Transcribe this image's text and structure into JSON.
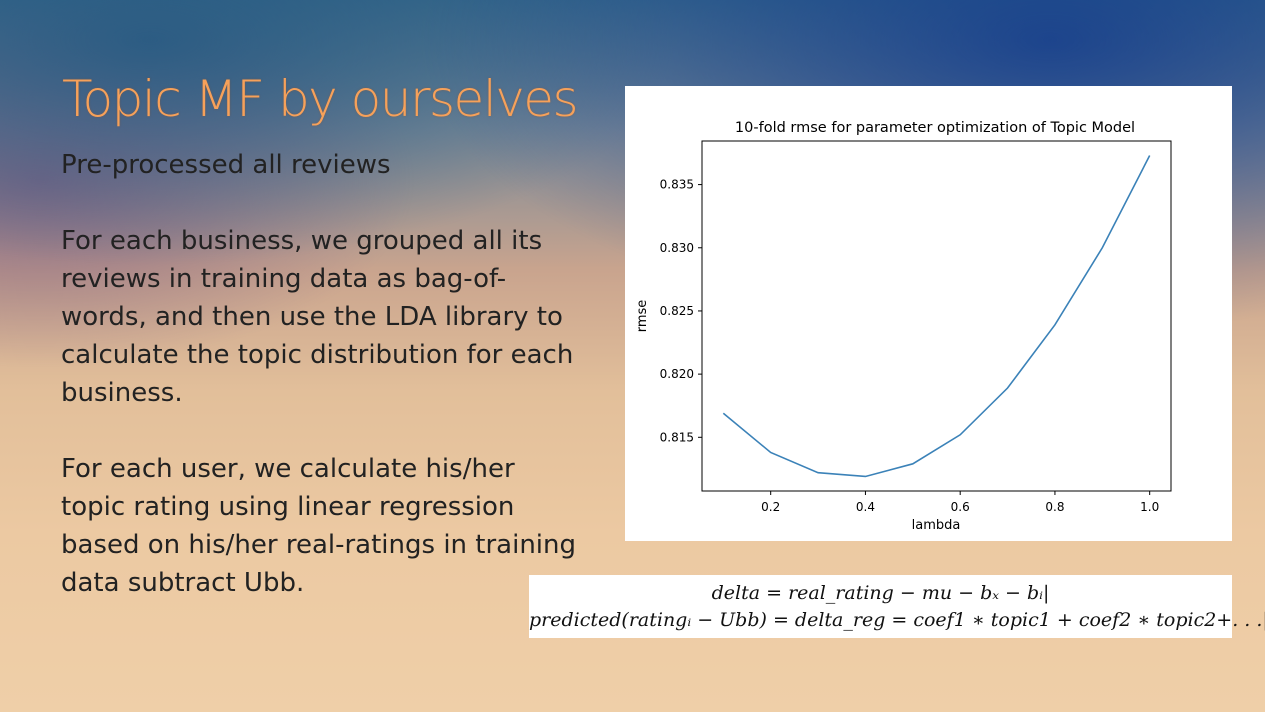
{
  "slide": {
    "title": "Topic MF by ourselves",
    "paragraphs": [
      "Pre-processed all reviews",
      "For each business, we grouped all its reviews in training data as bag-of-words, and then use the LDA library to calculate the topic distribution for each business.",
      "For each user, we calculate his/her topic rating using linear regression based on his/her real-ratings in training data subtract Ubb."
    ],
    "formulas": [
      "delta = real_rating − mu − bₓ − bᵢ|",
      "predicted(ratingᵢ − Ubb) = delta_reg = coef1 ∗ topic1 + coef2 ∗ topic2+. . .|"
    ]
  },
  "chart_data": {
    "type": "line",
    "title": "10-fold rmse for parameter optimization of Topic Model",
    "xlabel": "lambda",
    "ylabel": "rmse",
    "x": [
      0.1,
      0.2,
      0.3,
      0.4,
      0.5,
      0.6,
      0.7,
      0.8,
      0.9,
      1.0
    ],
    "series": [
      {
        "values": [
          0.8169,
          0.8138,
          0.8122,
          0.8119,
          0.8129,
          0.8152,
          0.8189,
          0.8239,
          0.83,
          0.8373
        ]
      }
    ],
    "xticks": [
      "0.2",
      "0.4",
      "0.6",
      "0.8",
      "1.0"
    ],
    "yticks": [
      "0.815",
      "0.820",
      "0.825",
      "0.830",
      "0.835"
    ],
    "xlim": [
      0.055,
      1.045
    ],
    "ylim": [
      0.81075,
      0.83845
    ],
    "grid": false,
    "line_color": "#3b82b8"
  }
}
